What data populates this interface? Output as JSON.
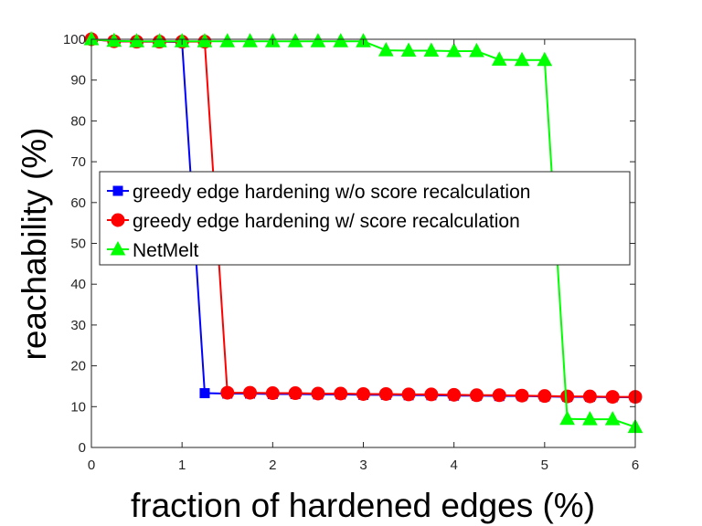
{
  "chart_data": {
    "type": "line",
    "xlabel": "fraction of hardened edges (%)",
    "ylabel": "reachability (%)",
    "xlim": [
      0,
      6
    ],
    "ylim": [
      0,
      100
    ],
    "xticks": [
      "0",
      "1",
      "2",
      "3",
      "4",
      "5",
      "6"
    ],
    "yticks": [
      "0",
      "10",
      "20",
      "30",
      "40",
      "50",
      "60",
      "70",
      "80",
      "90",
      "100"
    ],
    "grid": false,
    "legend_position": "center-left",
    "series": [
      {
        "name": "greedy edge hardening w/o score recalculation",
        "color": "#0000ff",
        "marker": "square",
        "x": [
          0,
          0.25,
          0.5,
          0.75,
          1.0,
          1.25,
          1.5,
          1.75,
          2.0,
          2.25,
          2.5,
          2.75,
          3.0,
          3.25,
          3.5,
          3.75,
          4.0,
          4.25,
          4.5,
          4.75,
          5.0,
          5.25,
          5.5,
          5.75,
          6.0
        ],
        "y": [
          100,
          99.5,
          99.4,
          99.4,
          99.3,
          13.3,
          13.2,
          13.2,
          13.1,
          13.1,
          13.0,
          13.0,
          12.9,
          12.9,
          12.8,
          12.8,
          12.7,
          12.7,
          12.6,
          12.6,
          12.5,
          12.4,
          12.4,
          12.3,
          12.3
        ]
      },
      {
        "name": "greedy edge hardening w/ score recalculation",
        "color": "#ff0000",
        "marker": "circle",
        "x": [
          0,
          0.25,
          0.5,
          0.75,
          1.0,
          1.25,
          1.5,
          1.75,
          2.0,
          2.25,
          2.5,
          2.75,
          3.0,
          3.25,
          3.5,
          3.75,
          4.0,
          4.25,
          4.5,
          4.75,
          5.0,
          5.25,
          5.5,
          5.75,
          6.0
        ],
        "y": [
          100,
          99.5,
          99.4,
          99.4,
          99.4,
          99.4,
          13.4,
          13.4,
          13.3,
          13.3,
          13.2,
          13.2,
          13.1,
          13.1,
          13.0,
          13.0,
          12.9,
          12.8,
          12.8,
          12.7,
          12.6,
          12.5,
          12.5,
          12.4,
          12.4
        ]
      },
      {
        "name": "NetMelt",
        "color": "#00ff00",
        "marker": "triangle",
        "x": [
          0,
          0.25,
          0.5,
          0.75,
          1.0,
          1.25,
          1.5,
          1.75,
          2.0,
          2.25,
          2.5,
          2.75,
          3.0,
          3.25,
          3.5,
          3.75,
          4.0,
          4.25,
          4.5,
          4.75,
          5.0,
          5.25,
          5.5,
          5.75,
          6.0
        ],
        "y": [
          100,
          99.6,
          99.5,
          99.5,
          99.5,
          99.5,
          99.5,
          99.5,
          99.5,
          99.5,
          99.5,
          99.5,
          99.5,
          97.3,
          97.2,
          97.2,
          97.1,
          97.1,
          95.0,
          94.9,
          94.9,
          7.0,
          6.9,
          6.9,
          5.0
        ]
      }
    ]
  }
}
